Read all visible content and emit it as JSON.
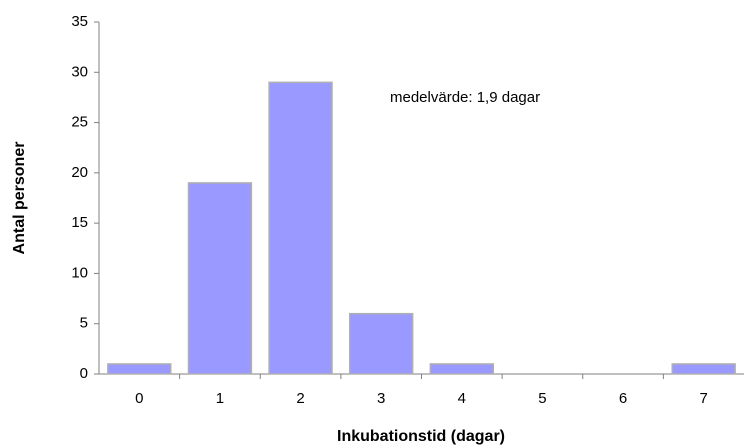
{
  "chart_data": {
    "type": "bar",
    "annotation": "medelvärde: 1,9 dagar",
    "xlabel": "Inkubationstid (dagar)",
    "ylabel": "Antal personer",
    "categories": [
      "0",
      "1",
      "2",
      "3",
      "4",
      "5",
      "6",
      "7"
    ],
    "values": [
      1,
      19,
      29,
      6,
      1,
      0,
      0,
      1
    ],
    "color": "#9999ff",
    "ylim": [
      0,
      35
    ],
    "yticks": [
      0,
      5,
      10,
      15,
      20,
      25,
      30,
      35
    ],
    "grid": false
  }
}
